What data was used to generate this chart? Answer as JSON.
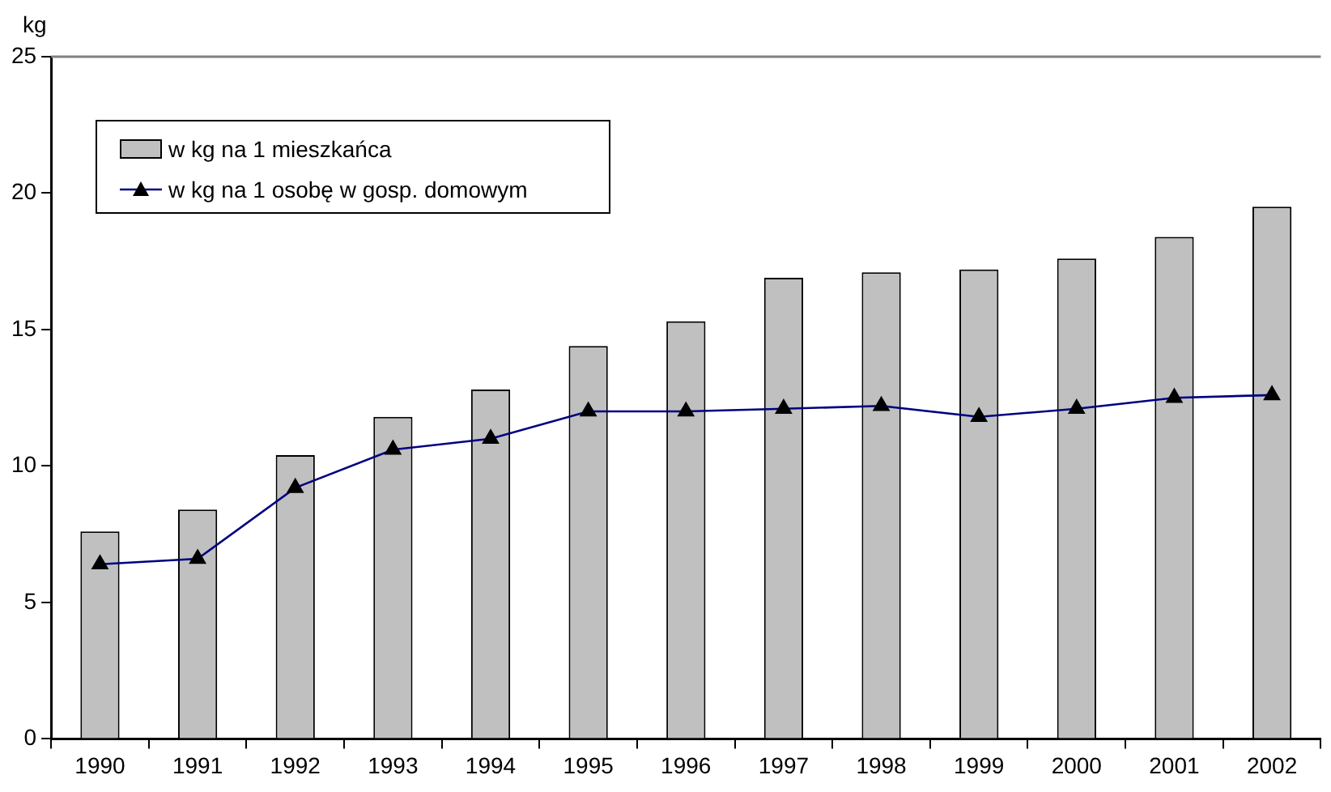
{
  "chart_data": {
    "type": "bar",
    "ylabel": "kg",
    "categories": [
      "1990",
      "1991",
      "1992",
      "1993",
      "1994",
      "1995",
      "1996",
      "1997",
      "1998",
      "1999",
      "2000",
      "2001",
      "2002"
    ],
    "series": [
      {
        "name": "w kg na 1 mieszkańca",
        "color": "#c0c0c0",
        "values": [
          7.6,
          8.4,
          10.4,
          11.8,
          12.8,
          14.4,
          15.3,
          16.9,
          17.1,
          17.2,
          17.6,
          18.4,
          19.5
        ]
      },
      {
        "name": "w kg na 1 osobę w gosp. domowym",
        "type": "line",
        "color": "#000080",
        "marker": "triangle",
        "values": [
          6.4,
          6.6,
          9.2,
          10.6,
          11.0,
          12.0,
          12.0,
          12.1,
          12.2,
          11.8,
          12.1,
          12.5,
          12.6
        ]
      }
    ],
    "ylim": [
      0,
      25
    ],
    "yticks": [
      0,
      5,
      10,
      15,
      20,
      25
    ],
    "grid": false,
    "legend": "top left"
  }
}
